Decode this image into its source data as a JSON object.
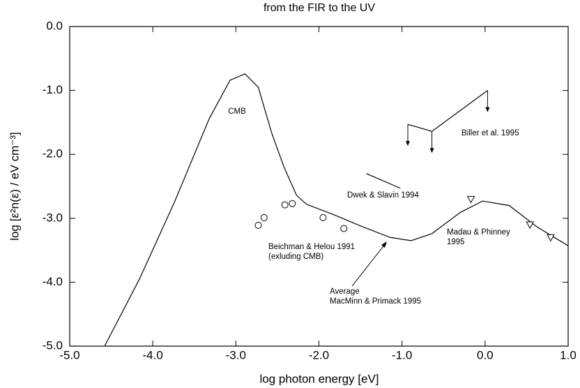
{
  "chart_data": {
    "type": "line",
    "title": "from the FIR to the UV",
    "x_label": "log photon energy [eV]",
    "y_label": "log [ε²n(ε) / eV cm⁻³]",
    "xlim": [
      -5,
      1
    ],
    "ylim": [
      -5,
      0
    ],
    "xticks": [
      {
        "value": -5,
        "label": "-5.0"
      },
      {
        "value": -4,
        "label": "-4.0"
      },
      {
        "value": -3,
        "label": "-3.0"
      },
      {
        "value": -2,
        "label": "-2.0"
      },
      {
        "value": -1,
        "label": "-1.0"
      },
      {
        "value": 0,
        "label": "0.0"
      },
      {
        "value": 1,
        "label": "1.0"
      }
    ],
    "yticks": [
      {
        "value": -5,
        "label": "-5.0"
      },
      {
        "value": -4,
        "label": "-4.0"
      },
      {
        "value": -3,
        "label": "-3.0"
      },
      {
        "value": -2,
        "label": "-2.0"
      },
      {
        "value": -1,
        "label": "-1.0"
      },
      {
        "value": 0,
        "label": "0.0"
      }
    ],
    "series": [
      {
        "color": "#000000",
        "marker": "none",
        "x": [
          -4.58,
          -4.16,
          -3.74,
          -3.32,
          -3.07,
          -2.89,
          -2.73,
          -2.57,
          -2.42,
          -2.27,
          -2.15,
          -1.81,
          -1.48,
          -1.14,
          -0.89,
          -0.64,
          -0.3,
          -0.03,
          0.29,
          0.62,
          1.0
        ],
        "values": [
          -5.0,
          -3.95,
          -2.75,
          -1.44,
          -0.84,
          -0.74,
          -0.95,
          -1.66,
          -2.2,
          -2.64,
          -2.78,
          -2.95,
          -3.13,
          -3.3,
          -3.35,
          -3.24,
          -2.91,
          -2.73,
          -2.8,
          -3.13,
          -3.43
        ]
      },
      {
        "color": "#000000",
        "marker": "circle",
        "x": [
          -2.73,
          -2.66,
          -2.41,
          -2.32,
          -1.95,
          -1.7
        ],
        "values": [
          -3.11,
          -2.99,
          -2.79,
          -2.77,
          -2.99,
          -3.16
        ]
      },
      {
        "color": "#000000",
        "marker": "triangle",
        "x": [
          -0.17,
          0.54,
          0.79
        ],
        "values": [
          -2.7,
          -3.1,
          -3.3
        ]
      },
      {
        "color": "#000000",
        "marker": "none",
        "x": [
          -1.43,
          -1.02
        ],
        "values": [
          -2.3,
          -2.53
        ]
      },
      {
        "color": "#000000",
        "marker": "arrow-down",
        "x": [
          -0.93,
          -0.64,
          0.03
        ],
        "values": [
          -1.53,
          -1.64,
          -1.0
        ]
      }
    ],
    "annotations": [
      "CMB",
      "Biller et al. 1995",
      "Dwek & Slavin 1994",
      "Madau & Phinney",
      "1995",
      "Beichman & Helou 1991",
      "(exluding CMB)",
      "Average",
      "MacMinn & Primack 1995"
    ]
  }
}
